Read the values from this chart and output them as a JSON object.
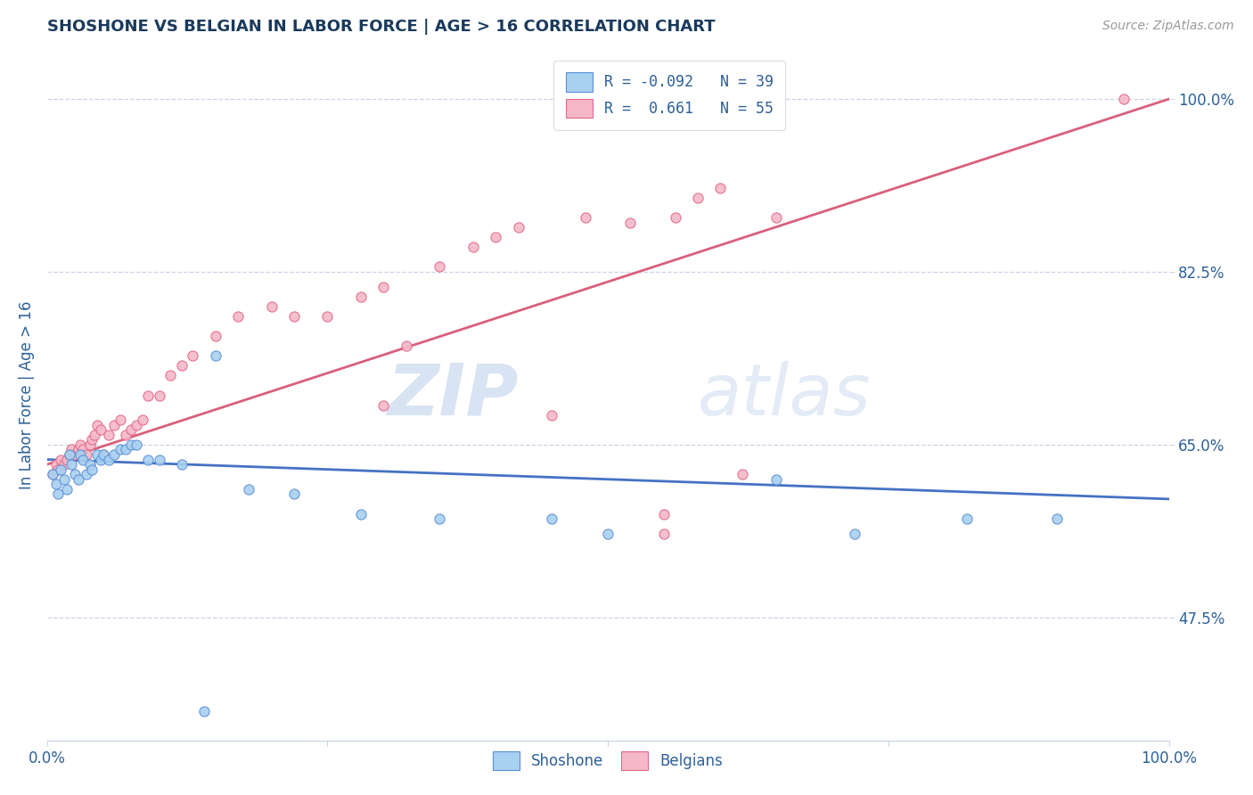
{
  "title": "SHOSHONE VS BELGIAN IN LABOR FORCE | AGE > 16 CORRELATION CHART",
  "source_text": "Source: ZipAtlas.com",
  "ylabel": "In Labor Force | Age > 16",
  "xlim": [
    0.0,
    1.0
  ],
  "ylim": [
    0.35,
    1.05
  ],
  "x_ticks": [
    0.0,
    0.25,
    0.5,
    0.75,
    1.0
  ],
  "x_tick_labels": [
    "0.0%",
    "",
    "",
    "",
    "100.0%"
  ],
  "y_tick_labels": [
    "47.5%",
    "65.0%",
    "82.5%",
    "100.0%"
  ],
  "y_ticks": [
    0.475,
    0.65,
    0.825,
    1.0
  ],
  "watermark_zip": "ZIP",
  "watermark_atlas": "atlas",
  "shoshone_R": -0.092,
  "shoshone_N": 39,
  "belgian_R": 0.661,
  "belgian_N": 55,
  "shoshone_color": "#a8d0f0",
  "belgian_color": "#f5b8c8",
  "shoshone_edge_color": "#5b8ed6",
  "belgian_edge_color": "#e06888",
  "shoshone_line_color": "#4472c4",
  "belgian_line_color": "#d9607a",
  "title_color": "#1a3a5c",
  "label_color": "#2d6099",
  "tick_color": "#2d6099",
  "background_color": "#ffffff",
  "grid_color": "#c8d4e8",
  "shoshone_x": [
    0.005,
    0.008,
    0.01,
    0.012,
    0.015,
    0.018,
    0.02,
    0.022,
    0.025,
    0.028,
    0.03,
    0.032,
    0.035,
    0.038,
    0.04,
    0.045,
    0.048,
    0.05,
    0.055,
    0.06,
    0.065,
    0.07,
    0.075,
    0.08,
    0.09,
    0.1,
    0.12,
    0.15,
    0.18,
    0.22,
    0.28,
    0.35,
    0.45,
    0.5,
    0.65,
    0.72,
    0.82,
    0.9,
    0.14
  ],
  "shoshone_y": [
    0.62,
    0.61,
    0.6,
    0.625,
    0.615,
    0.605,
    0.64,
    0.63,
    0.62,
    0.615,
    0.64,
    0.635,
    0.62,
    0.63,
    0.625,
    0.64,
    0.635,
    0.64,
    0.635,
    0.64,
    0.645,
    0.645,
    0.65,
    0.65,
    0.635,
    0.635,
    0.63,
    0.74,
    0.605,
    0.6,
    0.58,
    0.575,
    0.575,
    0.56,
    0.615,
    0.56,
    0.575,
    0.575,
    0.38
  ],
  "belgian_x": [
    0.005,
    0.008,
    0.01,
    0.012,
    0.015,
    0.018,
    0.02,
    0.022,
    0.025,
    0.028,
    0.03,
    0.032,
    0.035,
    0.038,
    0.04,
    0.042,
    0.045,
    0.048,
    0.05,
    0.055,
    0.06,
    0.065,
    0.07,
    0.075,
    0.08,
    0.085,
    0.09,
    0.1,
    0.11,
    0.12,
    0.13,
    0.15,
    0.17,
    0.2,
    0.22,
    0.25,
    0.28,
    0.3,
    0.32,
    0.35,
    0.38,
    0.4,
    0.42,
    0.48,
    0.52,
    0.56,
    0.58,
    0.6,
    0.62,
    0.65,
    0.55,
    0.3,
    0.45,
    0.55,
    0.96
  ],
  "belgian_y": [
    0.62,
    0.63,
    0.625,
    0.635,
    0.63,
    0.635,
    0.64,
    0.645,
    0.64,
    0.645,
    0.65,
    0.645,
    0.64,
    0.65,
    0.655,
    0.66,
    0.67,
    0.665,
    0.64,
    0.66,
    0.67,
    0.675,
    0.66,
    0.665,
    0.67,
    0.675,
    0.7,
    0.7,
    0.72,
    0.73,
    0.74,
    0.76,
    0.78,
    0.79,
    0.78,
    0.78,
    0.8,
    0.81,
    0.75,
    0.83,
    0.85,
    0.86,
    0.87,
    0.88,
    0.875,
    0.88,
    0.9,
    0.91,
    0.62,
    0.88,
    0.56,
    0.69,
    0.68,
    0.58,
    1.0
  ],
  "shoshone_line_x": [
    0.0,
    1.0
  ],
  "shoshone_line_y": [
    0.635,
    0.595
  ],
  "belgian_line_x": [
    0.0,
    1.0
  ],
  "belgian_line_y": [
    0.63,
    1.0
  ]
}
